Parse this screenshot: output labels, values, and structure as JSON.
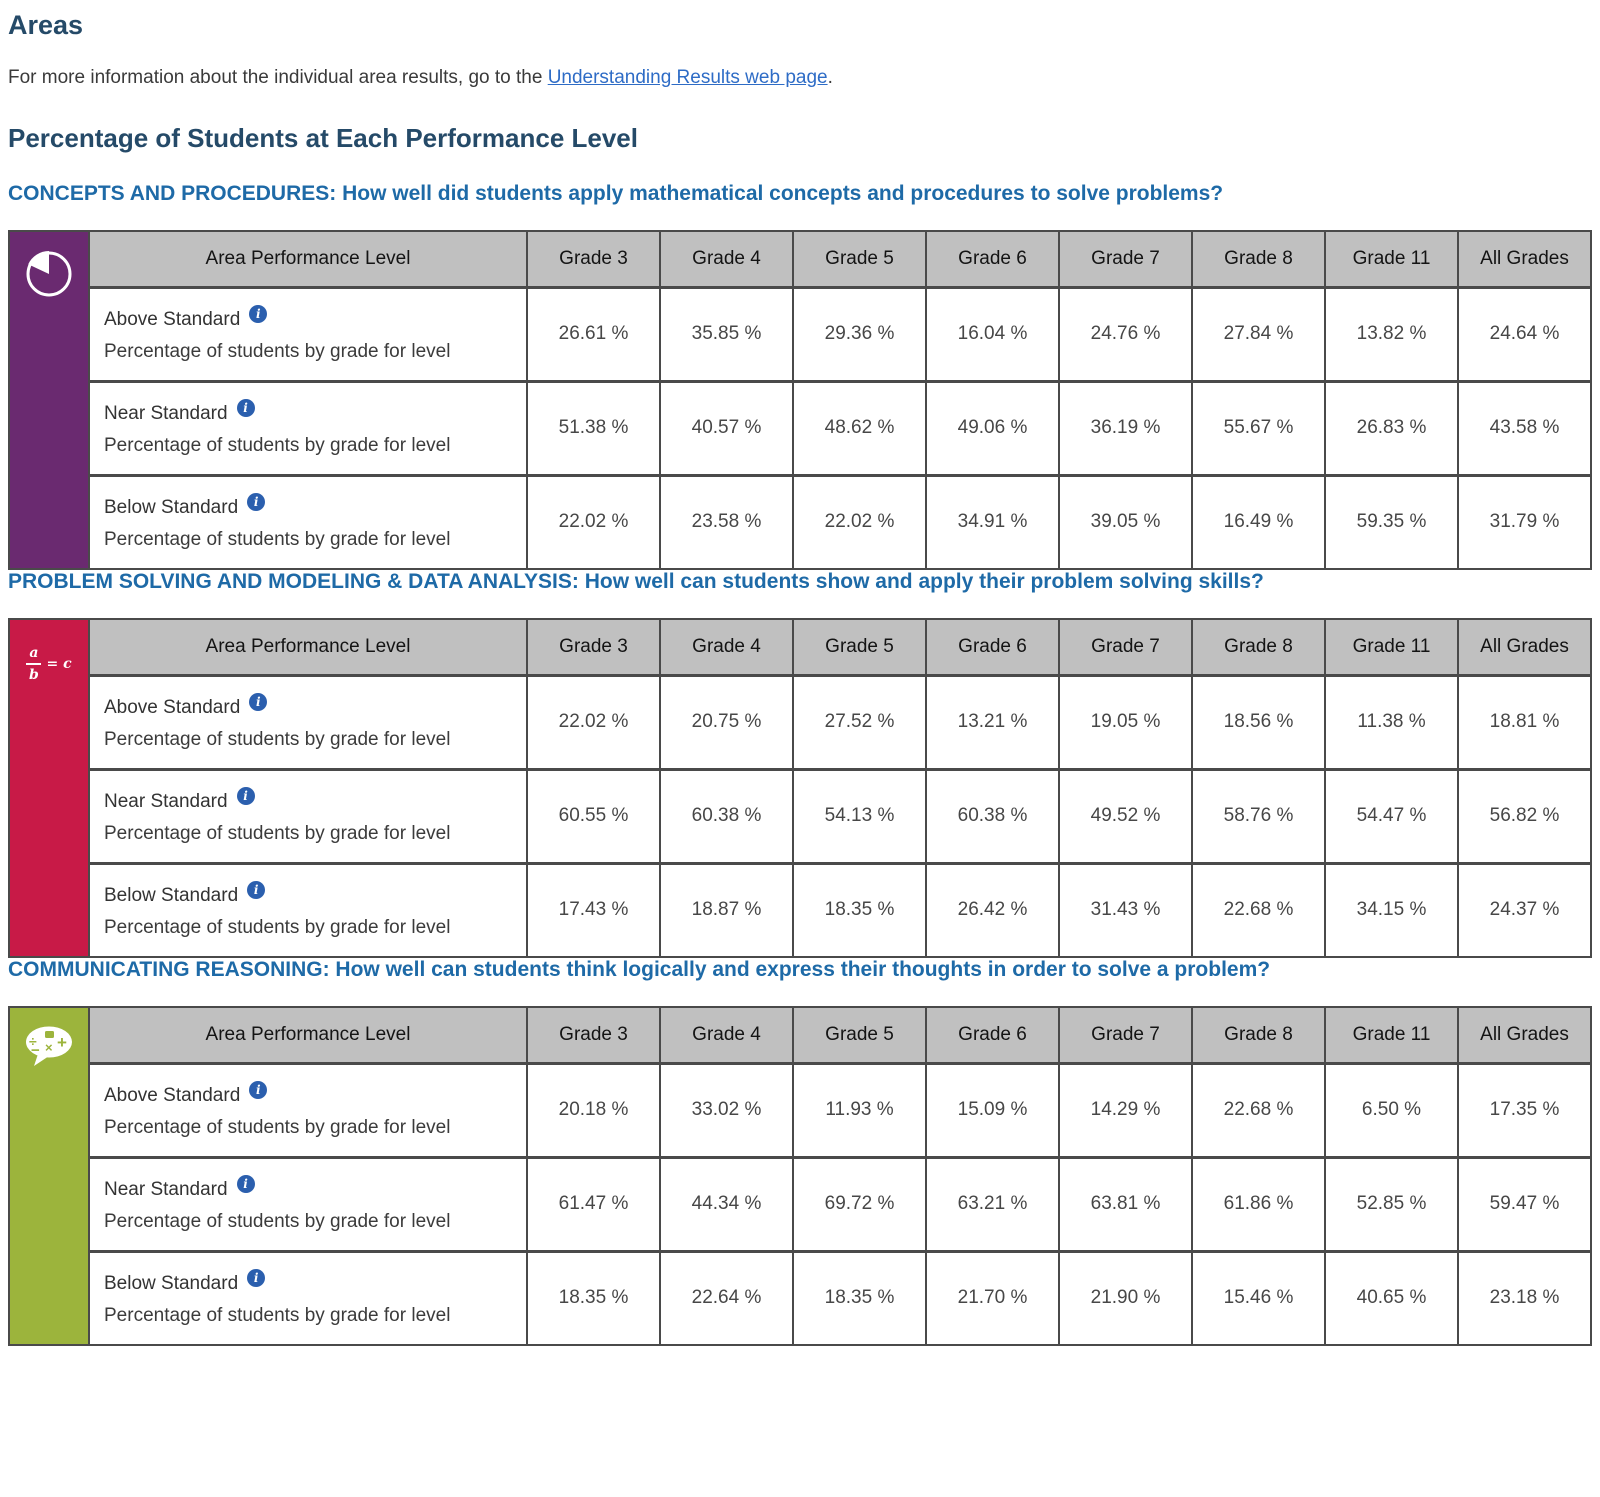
{
  "page": {
    "title": "Areas",
    "intro": {
      "before": "For more information about the individual area results, go to the ",
      "link_text": "Understanding Results web page",
      "after": "."
    },
    "subtitle": "Percentage of Students at Each Performance Level"
  },
  "table_labels": {
    "level_header": "Area Performance Level",
    "grade_headers": [
      "Grade 3",
      "Grade 4",
      "Grade 5",
      "Grade 6",
      "Grade 7",
      "Grade 8",
      "Grade 11",
      "All Grades"
    ],
    "row_sublabel": "Percentage of students by grade for level",
    "info_icon_glyph": "i"
  },
  "colors": {
    "concepts_sidebar": "#6a2a70",
    "problem_solving_sidebar": "#c81a47",
    "communicating_sidebar": "#9cb43c",
    "header_bg": "#c0c0c0",
    "table_border": "#4a4a4a",
    "section_heading": "#1e6aa7",
    "page_heading": "#254a68",
    "link": "#2e6cc6",
    "info_icon_bg": "#2b5fae"
  },
  "sections": [
    {
      "id": "concepts",
      "icon": "pie-chart-icon",
      "sidebar_color": "#6a2a70",
      "heading": "CONCEPTS AND PROCEDURES: How well did students apply mathematical concepts and procedures to solve problems?",
      "rows": [
        {
          "label": "Above Standard",
          "values": [
            "26.61 %",
            "35.85 %",
            "29.36 %",
            "16.04 %",
            "24.76 %",
            "27.84 %",
            "13.82 %",
            "24.64 %"
          ]
        },
        {
          "label": "Near Standard",
          "values": [
            "51.38 %",
            "40.57 %",
            "48.62 %",
            "49.06 %",
            "36.19 %",
            "55.67 %",
            "26.83 %",
            "43.58 %"
          ]
        },
        {
          "label": "Below Standard",
          "values": [
            "22.02 %",
            "23.58 %",
            "22.02 %",
            "34.91 %",
            "39.05 %",
            "16.49 %",
            "59.35 %",
            "31.79 %"
          ]
        }
      ]
    },
    {
      "id": "problem-solving",
      "icon": "fraction-equation-icon",
      "sidebar_color": "#c81a47",
      "icon_text": {
        "numerator": "a",
        "denominator": "b",
        "rhs": "= c"
      },
      "heading": "PROBLEM SOLVING AND MODELING & DATA ANALYSIS: How well can students show and apply their problem solving skills?",
      "rows": [
        {
          "label": "Above Standard",
          "values": [
            "22.02 %",
            "20.75 %",
            "27.52 %",
            "13.21 %",
            "19.05 %",
            "18.56 %",
            "11.38 %",
            "18.81 %"
          ]
        },
        {
          "label": "Near Standard",
          "values": [
            "60.55 %",
            "60.38 %",
            "54.13 %",
            "60.38 %",
            "49.52 %",
            "58.76 %",
            "54.47 %",
            "56.82 %"
          ]
        },
        {
          "label": "Below Standard",
          "values": [
            "17.43 %",
            "18.87 %",
            "18.35 %",
            "26.42 %",
            "31.43 %",
            "22.68 %",
            "34.15 %",
            "24.37 %"
          ]
        }
      ]
    },
    {
      "id": "communicating",
      "icon": "math-speech-bubble-icon",
      "sidebar_color": "#9cb43c",
      "icon_symbols": [
        "÷",
        "−",
        "×",
        "+"
      ],
      "heading": "COMMUNICATING REASONING: How well can students think logically and express their thoughts in order to solve a problem?",
      "rows": [
        {
          "label": "Above Standard",
          "values": [
            "20.18 %",
            "33.02 %",
            "11.93 %",
            "15.09 %",
            "14.29 %",
            "22.68 %",
            "6.50 %",
            "17.35 %"
          ]
        },
        {
          "label": "Near Standard",
          "values": [
            "61.47 %",
            "44.34 %",
            "69.72 %",
            "63.21 %",
            "63.81 %",
            "61.86 %",
            "52.85 %",
            "59.47 %"
          ]
        },
        {
          "label": "Below Standard",
          "values": [
            "18.35 %",
            "22.64 %",
            "18.35 %",
            "21.70 %",
            "21.90 %",
            "15.46 %",
            "40.65 %",
            "23.18 %"
          ]
        }
      ]
    }
  ]
}
